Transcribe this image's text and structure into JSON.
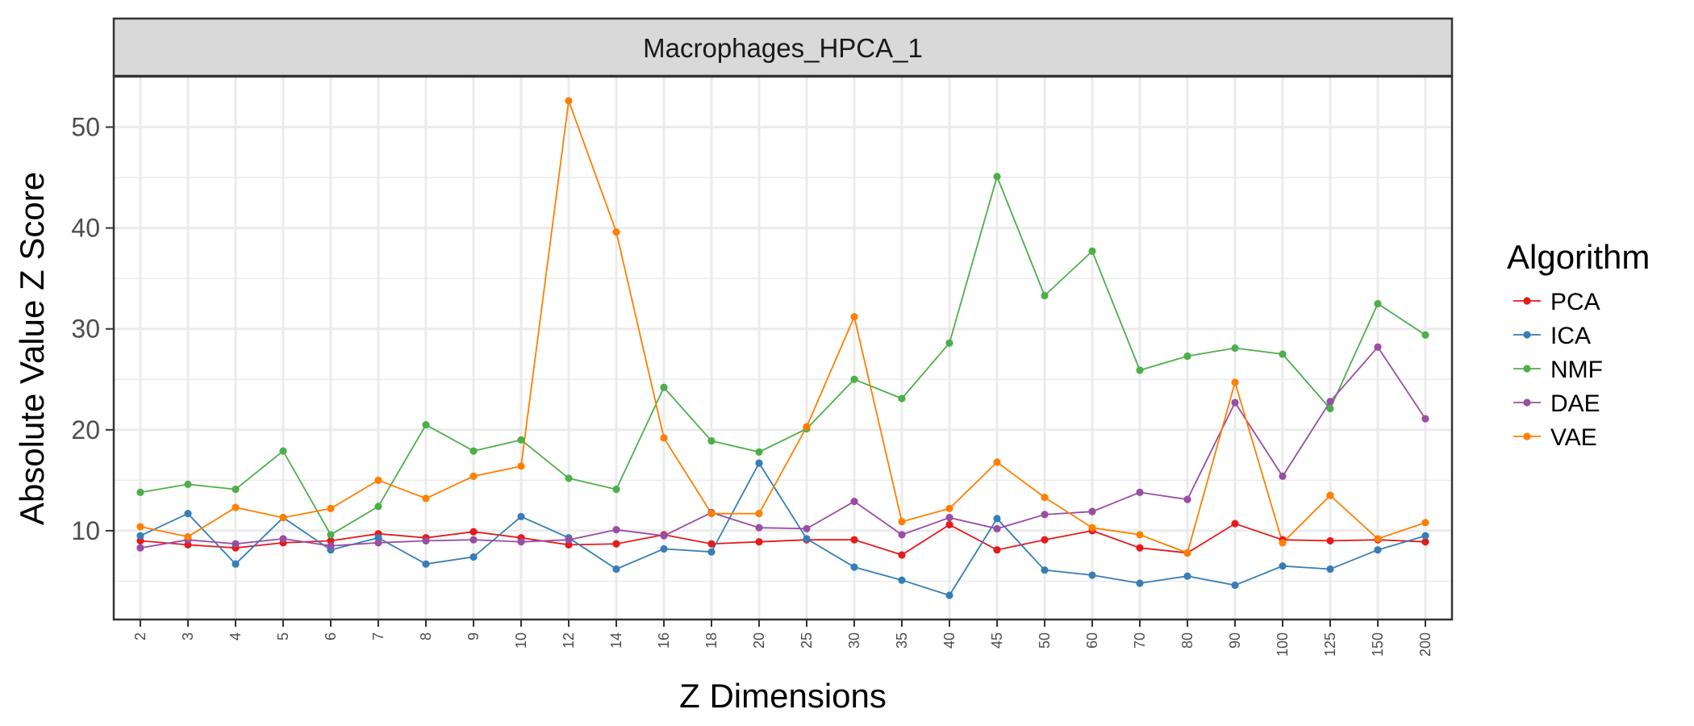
{
  "chart_data": {
    "type": "line",
    "facet_title": "Macrophages_HPCA_1",
    "xlabel": "Z Dimensions",
    "ylabel": "Absolute Value Z Score",
    "categories": [
      "2",
      "3",
      "4",
      "5",
      "6",
      "7",
      "8",
      "9",
      "10",
      "12",
      "14",
      "16",
      "18",
      "20",
      "25",
      "30",
      "35",
      "40",
      "45",
      "50",
      "60",
      "70",
      "80",
      "90",
      "100",
      "125",
      "150",
      "200"
    ],
    "y_ticks": [
      10,
      20,
      30,
      40,
      50
    ],
    "ylim": [
      1.2,
      55
    ],
    "grid": true,
    "legend_title": "Algorithm",
    "legend_position": "right",
    "series": [
      {
        "name": "PCA",
        "color": "#e41a1c",
        "values": [
          9.0,
          8.6,
          8.3,
          8.8,
          9.0,
          9.7,
          9.3,
          9.9,
          9.3,
          8.6,
          8.7,
          9.6,
          8.7,
          8.9,
          9.1,
          9.1,
          7.6,
          10.6,
          8.1,
          9.1,
          10.0,
          8.3,
          7.8,
          10.7,
          9.1,
          9.0,
          9.1,
          8.9
        ]
      },
      {
        "name": "ICA",
        "color": "#377eb8",
        "values": [
          9.5,
          11.7,
          6.7,
          11.3,
          8.1,
          9.3,
          6.7,
          7.4,
          11.4,
          9.3,
          6.2,
          8.2,
          7.9,
          16.7,
          9.2,
          6.4,
          5.1,
          3.6,
          11.2,
          6.1,
          5.6,
          4.8,
          5.5,
          4.6,
          6.5,
          6.2,
          8.1,
          9.5
        ]
      },
      {
        "name": "NMF",
        "color": "#4daf4a",
        "values": [
          13.8,
          14.6,
          14.1,
          17.9,
          9.6,
          12.4,
          20.5,
          17.9,
          19.0,
          15.2,
          14.1,
          24.2,
          18.9,
          17.8,
          20.1,
          25.0,
          23.1,
          28.6,
          45.1,
          33.3,
          37.7,
          25.9,
          27.3,
          28.1,
          27.5,
          22.1,
          32.5,
          29.4
        ]
      },
      {
        "name": "DAE",
        "color": "#984ea3",
        "values": [
          8.3,
          9.1,
          8.7,
          9.2,
          8.5,
          8.8,
          9.0,
          9.1,
          8.9,
          9.1,
          10.1,
          9.5,
          11.8,
          10.3,
          10.2,
          12.9,
          9.6,
          11.3,
          10.2,
          11.6,
          11.9,
          13.8,
          13.1,
          22.7,
          15.4,
          22.8,
          28.2,
          21.1
        ]
      },
      {
        "name": "VAE",
        "color": "#ff7f00",
        "values": [
          10.4,
          9.4,
          12.3,
          11.3,
          12.2,
          15.0,
          13.2,
          15.4,
          16.4,
          52.6,
          39.6,
          19.2,
          11.7,
          11.7,
          20.3,
          31.2,
          10.9,
          12.2,
          16.8,
          13.3,
          10.3,
          9.6,
          7.8,
          24.7,
          8.8,
          13.5,
          9.2,
          10.8
        ]
      }
    ]
  }
}
